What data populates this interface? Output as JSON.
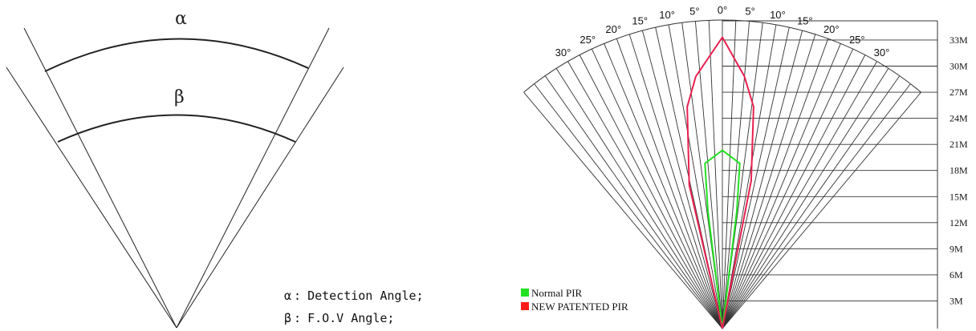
{
  "left_diagram": {
    "alpha_symbol": "α",
    "beta_symbol": "β",
    "legend": [
      {
        "symbol": "α",
        "text": "Detection Angle;"
      },
      {
        "symbol": "β",
        "text": "F.O.V Angle;"
      }
    ]
  },
  "right_chart": {
    "angle_labels": [
      {
        "text": "30°",
        "deg": -30
      },
      {
        "text": "25°",
        "deg": -25
      },
      {
        "text": "20°",
        "deg": -20
      },
      {
        "text": "15°",
        "deg": -15
      },
      {
        "text": "10°",
        "deg": -10
      },
      {
        "text": "5°",
        "deg": -5
      },
      {
        "text": "0°",
        "deg": 0
      },
      {
        "text": "5°",
        "deg": 5
      },
      {
        "text": "10°",
        "deg": 10
      },
      {
        "text": "15°",
        "deg": 15
      },
      {
        "text": "20°",
        "deg": 20
      },
      {
        "text": "25°",
        "deg": 25
      },
      {
        "text": "30°",
        "deg": 30
      }
    ],
    "distance_labels": [
      "33M",
      "30M",
      "27M",
      "24M",
      "21M",
      "18M",
      "15M",
      "12M",
      "9M",
      "6M",
      "3M"
    ],
    "legend": [
      {
        "label": "Normal PIR",
        "color": "#22e022"
      },
      {
        "label": "NEW PATENTED PIR",
        "color": "#ff1a1a"
      }
    ],
    "colors": {
      "normal": "#22e022",
      "patented": "#e8214f"
    }
  },
  "chart_data": {
    "type": "polar-coverage",
    "r_unit": "M",
    "angle_unit": "deg",
    "series": [
      {
        "name": "Normal PIR",
        "points": [
          [
            0,
            0
          ],
          [
            -7,
            13.5
          ],
          [
            -6,
            19
          ],
          [
            0,
            20.5
          ],
          [
            6,
            19
          ],
          [
            7,
            13.5
          ],
          [
            0,
            0
          ]
        ]
      },
      {
        "name": "NEW PATENTED PIR",
        "points": [
          [
            0,
            0
          ],
          [
            -13,
            16.5
          ],
          [
            -9,
            25.5
          ],
          [
            -6,
            29
          ],
          [
            0,
            33.5
          ],
          [
            5,
            29
          ],
          [
            8,
            25.5
          ],
          [
            11,
            17
          ],
          [
            0,
            0
          ]
        ]
      }
    ]
  }
}
